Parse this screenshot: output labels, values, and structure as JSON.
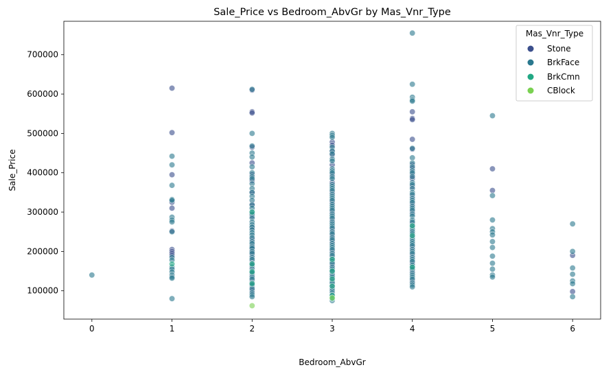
{
  "chart_data": {
    "type": "scatter",
    "title": "Sale_Price vs Bedroom_AbvGr by Mas_Vnr_Type",
    "xlabel": "Bedroom_AbvGr",
    "ylabel": "Sale_Price",
    "xlim": [
      -0.35,
      6.35
    ],
    "ylim": [
      28000,
      785000
    ],
    "x_ticks": [
      0,
      1,
      2,
      3,
      4,
      5,
      6
    ],
    "y_ticks": [
      100000,
      200000,
      300000,
      400000,
      500000,
      600000,
      700000
    ],
    "grid": false,
    "legend": {
      "title": "Mas_Vnr_Type",
      "placement": "top-right",
      "entries": [
        "Stone",
        "BrkFace",
        "BrkCmn",
        "CBlock"
      ]
    },
    "point_alpha": 0.6,
    "series": [
      {
        "name": "Stone",
        "color": "#3b4f8c",
        "points": [
          [
            1,
            615000
          ],
          [
            1,
            502000
          ],
          [
            1,
            395000
          ],
          [
            1,
            325000
          ],
          [
            1,
            310000
          ],
          [
            1,
            252000
          ],
          [
            1,
            205000
          ],
          [
            1,
            200000
          ],
          [
            1,
            195000
          ],
          [
            1,
            190000
          ],
          [
            2,
            610000
          ],
          [
            2,
            555000
          ],
          [
            2,
            552000
          ],
          [
            2,
            465000
          ],
          [
            2,
            425000
          ],
          [
            2,
            395000
          ],
          [
            2,
            380000
          ],
          [
            2,
            350000
          ],
          [
            2,
            320000
          ],
          [
            2,
            290000
          ],
          [
            2,
            260000
          ],
          [
            2,
            230000
          ],
          [
            2,
            215000
          ],
          [
            2,
            205000
          ],
          [
            2,
            198000
          ],
          [
            2,
            190000
          ],
          [
            2,
            175000
          ],
          [
            2,
            160000
          ],
          [
            2,
            140000
          ],
          [
            2,
            125000
          ],
          [
            2,
            110000
          ],
          [
            2,
            100000
          ],
          [
            3,
            478000
          ],
          [
            3,
            470000
          ],
          [
            3,
            455000
          ],
          [
            3,
            445000
          ],
          [
            3,
            420000
          ],
          [
            3,
            395000
          ],
          [
            3,
            375000
          ],
          [
            3,
            350000
          ],
          [
            3,
            325000
          ],
          [
            3,
            300000
          ],
          [
            3,
            280000
          ],
          [
            3,
            255000
          ],
          [
            3,
            240000
          ],
          [
            3,
            225000
          ],
          [
            3,
            200000
          ],
          [
            3,
            185000
          ],
          [
            3,
            165000
          ],
          [
            3,
            145000
          ],
          [
            3,
            130000
          ],
          [
            3,
            115000
          ],
          [
            4,
            555000
          ],
          [
            4,
            538000
          ],
          [
            4,
            535000
          ],
          [
            4,
            485000
          ],
          [
            4,
            460000
          ],
          [
            4,
            420000
          ],
          [
            4,
            410000
          ],
          [
            4,
            395000
          ],
          [
            4,
            385000
          ],
          [
            4,
            365000
          ],
          [
            4,
            340000
          ],
          [
            4,
            320000
          ],
          [
            4,
            300000
          ],
          [
            4,
            270000
          ],
          [
            4,
            240000
          ],
          [
            4,
            210000
          ],
          [
            4,
            190000
          ],
          [
            4,
            170000
          ],
          [
            4,
            150000
          ],
          [
            4,
            125000
          ],
          [
            5,
            410000
          ],
          [
            5,
            355000
          ],
          [
            6,
            190000
          ],
          [
            6,
            98000
          ]
        ]
      },
      {
        "name": "BrkFace",
        "color": "#2a788e",
        "points": [
          [
            0,
            140000
          ],
          [
            1,
            442000
          ],
          [
            1,
            420000
          ],
          [
            1,
            368000
          ],
          [
            1,
            332000
          ],
          [
            1,
            330000
          ],
          [
            1,
            287000
          ],
          [
            1,
            280000
          ],
          [
            1,
            275000
          ],
          [
            1,
            250000
          ],
          [
            1,
            185000
          ],
          [
            1,
            178000
          ],
          [
            1,
            160000
          ],
          [
            1,
            155000
          ],
          [
            1,
            148000
          ],
          [
            1,
            140000
          ],
          [
            1,
            135000
          ],
          [
            1,
            132000
          ],
          [
            1,
            80000
          ],
          [
            2,
            612000
          ],
          [
            2,
            500000
          ],
          [
            2,
            468000
          ],
          [
            2,
            450000
          ],
          [
            2,
            440000
          ],
          [
            2,
            415000
          ],
          [
            2,
            400000
          ],
          [
            2,
            390000
          ],
          [
            2,
            385000
          ],
          [
            2,
            372000
          ],
          [
            2,
            360000
          ],
          [
            2,
            350000
          ],
          [
            2,
            340000
          ],
          [
            2,
            330000
          ],
          [
            2,
            318000
          ],
          [
            2,
            310000
          ],
          [
            2,
            300000
          ],
          [
            2,
            295000
          ],
          [
            2,
            285000
          ],
          [
            2,
            275000
          ],
          [
            2,
            268000
          ],
          [
            2,
            262000
          ],
          [
            2,
            255000
          ],
          [
            2,
            248000
          ],
          [
            2,
            242000
          ],
          [
            2,
            235000
          ],
          [
            2,
            225000
          ],
          [
            2,
            220000
          ],
          [
            2,
            212000
          ],
          [
            2,
            208000
          ],
          [
            2,
            200000
          ],
          [
            2,
            195000
          ],
          [
            2,
            185000
          ],
          [
            2,
            180000
          ],
          [
            2,
            170000
          ],
          [
            2,
            165000
          ],
          [
            2,
            155000
          ],
          [
            2,
            150000
          ],
          [
            2,
            145000
          ],
          [
            2,
            135000
          ],
          [
            2,
            130000
          ],
          [
            2,
            120000
          ],
          [
            2,
            115000
          ],
          [
            2,
            105000
          ],
          [
            2,
            95000
          ],
          [
            2,
            90000
          ],
          [
            2,
            85000
          ],
          [
            3,
            500000
          ],
          [
            3,
            495000
          ],
          [
            3,
            490000
          ],
          [
            3,
            465000
          ],
          [
            3,
            455000
          ],
          [
            3,
            448000
          ],
          [
            3,
            435000
          ],
          [
            3,
            430000
          ],
          [
            3,
            410000
          ],
          [
            3,
            405000
          ],
          [
            3,
            400000
          ],
          [
            3,
            390000
          ],
          [
            3,
            385000
          ],
          [
            3,
            370000
          ],
          [
            3,
            365000
          ],
          [
            3,
            360000
          ],
          [
            3,
            355000
          ],
          [
            3,
            345000
          ],
          [
            3,
            340000
          ],
          [
            3,
            335000
          ],
          [
            3,
            330000
          ],
          [
            3,
            320000
          ],
          [
            3,
            315000
          ],
          [
            3,
            310000
          ],
          [
            3,
            305000
          ],
          [
            3,
            295000
          ],
          [
            3,
            290000
          ],
          [
            3,
            285000
          ],
          [
            3,
            275000
          ],
          [
            3,
            270000
          ],
          [
            3,
            265000
          ],
          [
            3,
            260000
          ],
          [
            3,
            250000
          ],
          [
            3,
            245000
          ],
          [
            3,
            235000
          ],
          [
            3,
            230000
          ],
          [
            3,
            220000
          ],
          [
            3,
            215000
          ],
          [
            3,
            210000
          ],
          [
            3,
            205000
          ],
          [
            3,
            195000
          ],
          [
            3,
            190000
          ],
          [
            3,
            180000
          ],
          [
            3,
            175000
          ],
          [
            3,
            170000
          ],
          [
            3,
            160000
          ],
          [
            3,
            155000
          ],
          [
            3,
            150000
          ],
          [
            3,
            140000
          ],
          [
            3,
            135000
          ],
          [
            3,
            125000
          ],
          [
            3,
            120000
          ],
          [
            3,
            110000
          ],
          [
            3,
            105000
          ],
          [
            3,
            100000
          ],
          [
            3,
            95000
          ],
          [
            3,
            90000
          ],
          [
            3,
            75000
          ],
          [
            4,
            755000
          ],
          [
            4,
            625000
          ],
          [
            4,
            592000
          ],
          [
            4,
            585000
          ],
          [
            4,
            582000
          ],
          [
            4,
            462000
          ],
          [
            4,
            438000
          ],
          [
            4,
            425000
          ],
          [
            4,
            415000
          ],
          [
            4,
            405000
          ],
          [
            4,
            400000
          ],
          [
            4,
            390000
          ],
          [
            4,
            375000
          ],
          [
            4,
            370000
          ],
          [
            4,
            360000
          ],
          [
            4,
            350000
          ],
          [
            4,
            345000
          ],
          [
            4,
            335000
          ],
          [
            4,
            330000
          ],
          [
            4,
            325000
          ],
          [
            4,
            315000
          ],
          [
            4,
            310000
          ],
          [
            4,
            305000
          ],
          [
            4,
            295000
          ],
          [
            4,
            290000
          ],
          [
            4,
            280000
          ],
          [
            4,
            275000
          ],
          [
            4,
            265000
          ],
          [
            4,
            260000
          ],
          [
            4,
            255000
          ],
          [
            4,
            250000
          ],
          [
            4,
            245000
          ],
          [
            4,
            235000
          ],
          [
            4,
            230000
          ],
          [
            4,
            225000
          ],
          [
            4,
            220000
          ],
          [
            4,
            215000
          ],
          [
            4,
            205000
          ],
          [
            4,
            200000
          ],
          [
            4,
            195000
          ],
          [
            4,
            185000
          ],
          [
            4,
            180000
          ],
          [
            4,
            175000
          ],
          [
            4,
            165000
          ],
          [
            4,
            160000
          ],
          [
            4,
            155000
          ],
          [
            4,
            145000
          ],
          [
            4,
            140000
          ],
          [
            4,
            135000
          ],
          [
            4,
            130000
          ],
          [
            4,
            120000
          ],
          [
            4,
            115000
          ],
          [
            4,
            110000
          ],
          [
            5,
            545000
          ],
          [
            5,
            342000
          ],
          [
            5,
            280000
          ],
          [
            5,
            258000
          ],
          [
            5,
            250000
          ],
          [
            5,
            242000
          ],
          [
            5,
            225000
          ],
          [
            5,
            210000
          ],
          [
            5,
            188000
          ],
          [
            5,
            170000
          ],
          [
            5,
            155000
          ],
          [
            5,
            140000
          ],
          [
            5,
            135000
          ],
          [
            6,
            270000
          ],
          [
            6,
            200000
          ],
          [
            6,
            158000
          ],
          [
            6,
            142000
          ],
          [
            6,
            125000
          ],
          [
            6,
            118000
          ],
          [
            6,
            85000
          ]
        ]
      },
      {
        "name": "BrkCmn",
        "color": "#22a884",
        "points": [
          [
            1,
            168000
          ],
          [
            2,
            300000
          ],
          [
            2,
            168000
          ],
          [
            2,
            148000
          ],
          [
            2,
            118000
          ],
          [
            3,
            180000
          ],
          [
            3,
            150000
          ],
          [
            3,
            130000
          ],
          [
            3,
            112000
          ],
          [
            3,
            88000
          ],
          [
            3,
            80000
          ],
          [
            4,
            265000
          ],
          [
            4,
            240000
          ],
          [
            4,
            160000
          ]
        ]
      },
      {
        "name": "CBlock",
        "color": "#7ad151",
        "points": [
          [
            2,
            62000
          ],
          [
            3,
            82000
          ]
        ]
      }
    ]
  }
}
